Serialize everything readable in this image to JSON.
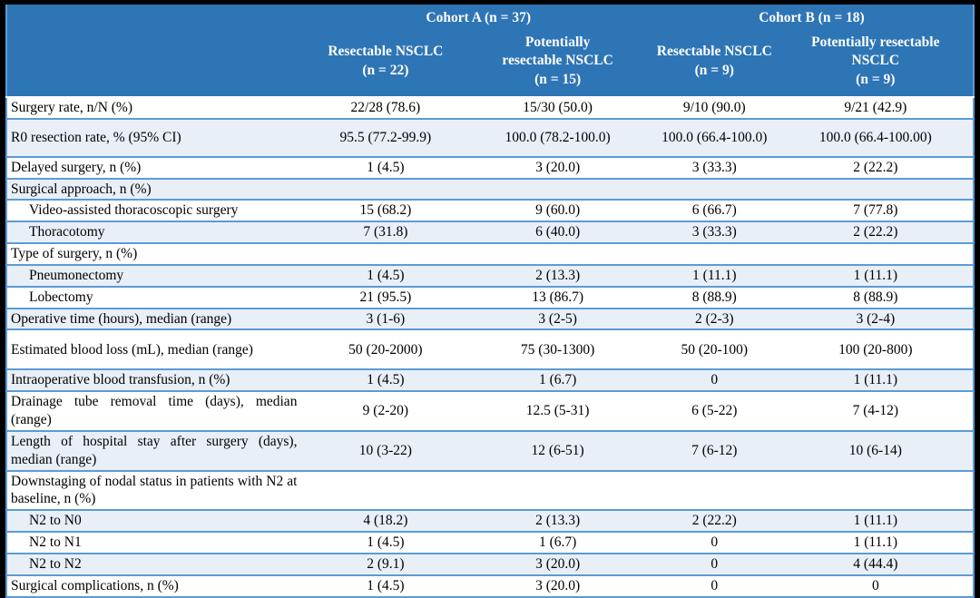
{
  "colors": {
    "header_bg": "#2E75B6",
    "stripe_bg": "#E9EFF7",
    "border_blue": "#5B9BD5",
    "frame": "#000000",
    "header_text": "#FFFFFF",
    "body_text": "#000000"
  },
  "table": {
    "groups": [
      {
        "label": "Cohort A (n = 37)"
      },
      {
        "label": "Cohort B (n = 18)"
      }
    ],
    "columns": [
      {
        "label": "Resectable NSCLC\n(n = 22)"
      },
      {
        "label": "Potentially\nresectable NSCLC\n(n = 15)"
      },
      {
        "label": "Resectable NSCLC\n(n = 9)"
      },
      {
        "label": "Potentially resectable\nNSCLC\n(n = 9)"
      }
    ],
    "rows": [
      {
        "label": "Surgery rate, n/N (%)",
        "indent": false,
        "values": [
          "22/28 (78.6)",
          "15/30 (50.0)",
          "9/10 (90.0)",
          "9/21 (42.9)"
        ]
      },
      {
        "label": "R0 resection rate, % (95% CI)",
        "indent": false,
        "values": [
          "95.5 (77.2-99.9)",
          "100.0 (78.2-100.0)",
          "100.0 (66.4-100.0)",
          "100.0 (66.4-100.00)"
        ]
      },
      {
        "label": "Delayed surgery, n (%)",
        "indent": false,
        "values": [
          "1 (4.5)",
          "3 (20.0)",
          "3 (33.3)",
          "2 (22.2)"
        ]
      },
      {
        "label": "Surgical approach, n (%)",
        "indent": false,
        "values": [
          "",
          "",
          "",
          ""
        ]
      },
      {
        "label": "Video-assisted thoracoscopic surgery",
        "indent": true,
        "values": [
          "15 (68.2)",
          "9 (60.0)",
          "6 (66.7)",
          "7 (77.8)"
        ]
      },
      {
        "label": "Thoracotomy",
        "indent": true,
        "values": [
          "7 (31.8)",
          "6 (40.0)",
          "3 (33.3)",
          "2 (22.2)"
        ]
      },
      {
        "label": "Type of surgery, n (%)",
        "indent": false,
        "values": [
          "",
          "",
          "",
          ""
        ]
      },
      {
        "label": "Pneumonectomy",
        "indent": true,
        "values": [
          "1 (4.5)",
          "2 (13.3)",
          "1 (11.1)",
          "1 (11.1)"
        ]
      },
      {
        "label": "Lobectomy",
        "indent": true,
        "values": [
          "21 (95.5)",
          "13 (86.7)",
          "8 (88.9)",
          "8 (88.9)"
        ]
      },
      {
        "label": "Operative time (hours), median (range)",
        "indent": false,
        "values": [
          "3 (1-6)",
          "3 (2-5)",
          "2 (2-3)",
          "3 (2-4)"
        ]
      },
      {
        "label": "Estimated blood loss (mL), median (range)",
        "indent": false,
        "values": [
          "50 (20-2000)",
          "75 (30-1300)",
          "50 (20-100)",
          "100 (20-800)"
        ]
      },
      {
        "label": "Intraoperative blood transfusion, n (%)",
        "indent": false,
        "values": [
          "1 (4.5)",
          "1 (6.7)",
          "0",
          "1 (11.1)"
        ]
      },
      {
        "label": "Drainage tube removal time (days), median (range)",
        "indent": false,
        "values": [
          "9 (2-20)",
          "12.5 (5-31)",
          "6 (5-22)",
          "7 (4-12)"
        ]
      },
      {
        "label": "Length of hospital stay after surgery (days), median (range)",
        "indent": false,
        "values": [
          "10 (3-22)",
          "12 (6-51)",
          "7 (6-12)",
          "10 (6-14)"
        ]
      },
      {
        "label": "Downstaging of nodal status in patients with N2 at baseline, n (%)",
        "indent": false,
        "values": [
          "",
          "",
          "",
          ""
        ]
      },
      {
        "label": "N2 to N0",
        "indent": true,
        "values": [
          "4 (18.2)",
          "2 (13.3)",
          "2 (22.2)",
          "1 (11.1)"
        ]
      },
      {
        "label": "N2 to N1",
        "indent": true,
        "values": [
          "1 (4.5)",
          "1 (6.7)",
          "0",
          "1 (11.1)"
        ]
      },
      {
        "label": "N2 to N2",
        "indent": true,
        "values": [
          "2 (9.1)",
          "3 (20.0)",
          "0",
          "4 (44.4)"
        ]
      },
      {
        "label": "Surgical complications, n (%)",
        "indent": false,
        "values": [
          "1 (4.5)",
          "3 (20.0)",
          "0",
          "0"
        ]
      }
    ]
  }
}
